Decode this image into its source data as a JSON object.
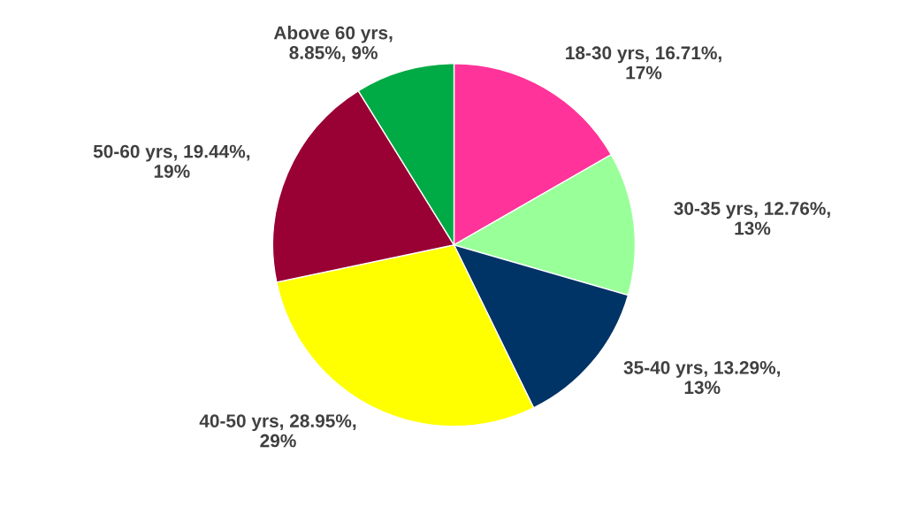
{
  "chart_data": {
    "type": "pie",
    "categories": [
      "18-30 yrs, 16.71%, 17%",
      "30-35 yrs, 12.76%, 13%",
      "35-40 yrs, 13.29%, 13%",
      "40-50 yrs, 28.95%, 29%",
      "50-60 yrs, 19.44%, 19%",
      "Above 60 yrs, 8.85%, 9%"
    ],
    "values": [
      16.71,
      12.76,
      13.29,
      28.95,
      19.44,
      8.85
    ],
    "colors": [
      "#ff3399",
      "#99ff99",
      "#003366",
      "#ffff00",
      "#990033",
      "#00aa44"
    ],
    "legend": false
  }
}
